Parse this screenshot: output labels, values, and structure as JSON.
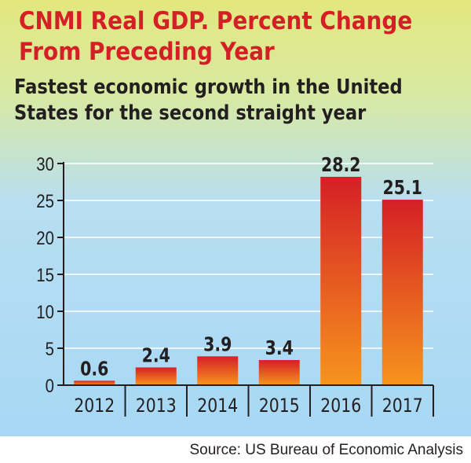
{
  "title": "CNMI Real GDP. Percent Change\nFrom Preceding Year",
  "subtitle": "Fastest economic growth in the United\nStates for  the second straight year",
  "source": "Source: US Bureau of Economic Analysis",
  "colors": {
    "title": "#d51f26",
    "bar_top": "#d51f26",
    "bar_bottom": "#f7941d",
    "text": "#231f20",
    "grid": "#ffffff",
    "axis": "#231f20"
  },
  "chart_data": {
    "type": "bar",
    "title": "CNMI Real GDP. Percent Change From Preceding Year",
    "subtitle": "Fastest economic growth in the United States for the second straight year",
    "categories": [
      "2012",
      "2013",
      "2014",
      "2015",
      "2016",
      "2017"
    ],
    "values": [
      0.6,
      2.4,
      3.9,
      3.4,
      28.2,
      25.1
    ],
    "value_labels": [
      "0.6",
      "2.4",
      "3.9",
      "3.4",
      "28.2",
      "25.1"
    ],
    "y_ticks": [
      "0",
      "5",
      "10",
      "15",
      "20",
      "25",
      "30"
    ],
    "ylim": [
      0,
      30
    ],
    "grid": true,
    "legend": "none"
  }
}
